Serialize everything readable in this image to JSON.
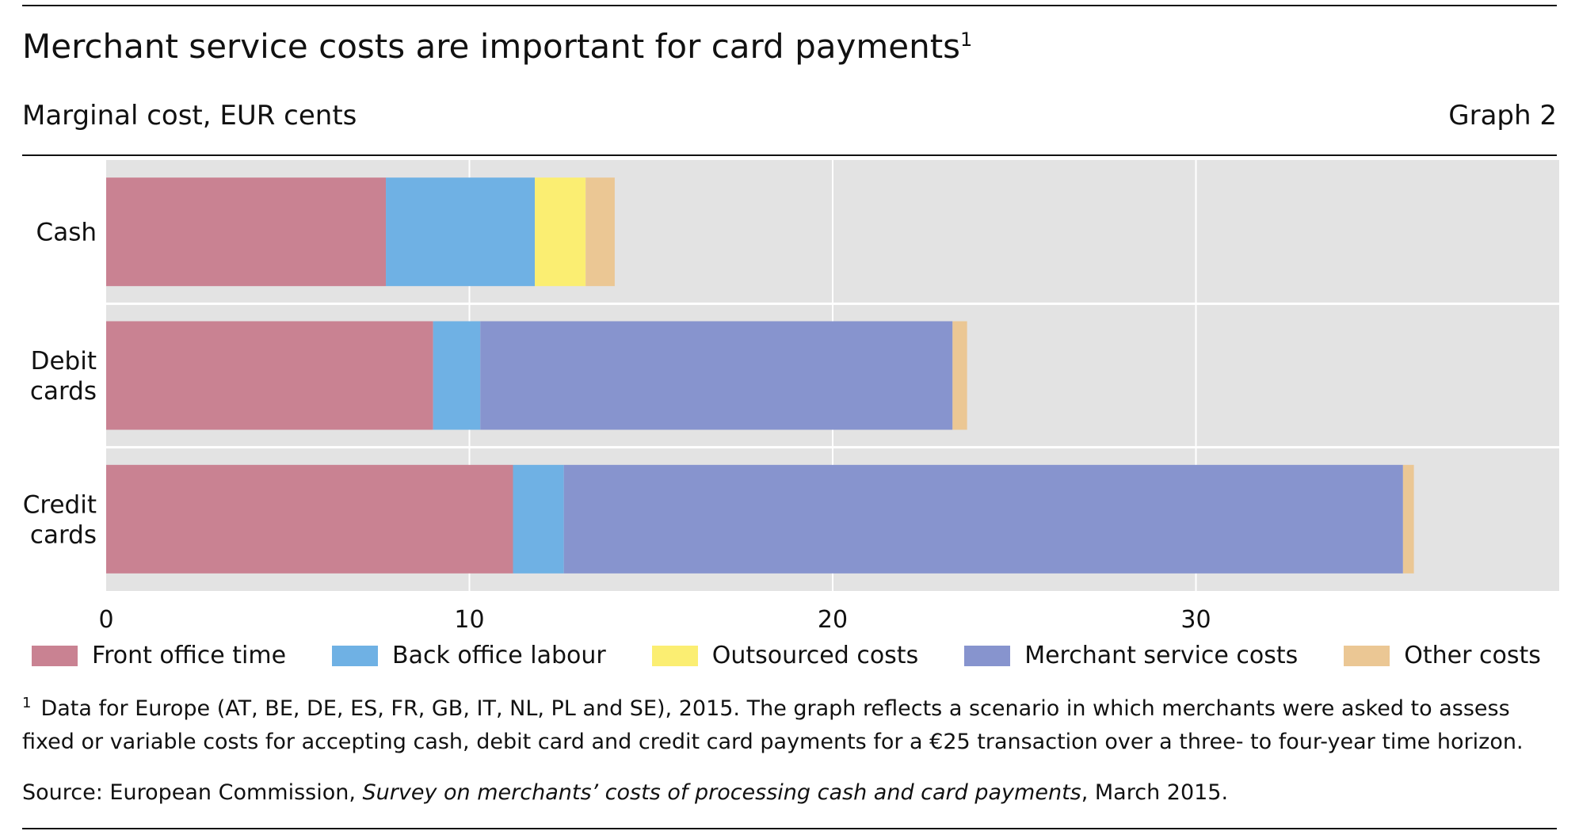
{
  "header": {
    "title": "Merchant service costs are important for card payments",
    "title_superscript": "1",
    "subtitle": "Marginal cost, EUR cents",
    "graph_number": "Graph 2"
  },
  "chart_data": {
    "type": "bar",
    "orientation": "horizontal",
    "stacked": true,
    "categories": [
      "Cash",
      "Debit cards",
      "Credit cards"
    ],
    "series": [
      {
        "name": "Front office time",
        "color": "#c98292",
        "values": [
          7.7,
          9.0,
          11.2
        ]
      },
      {
        "name": "Back office labour",
        "color": "#6fb1e4",
        "values": [
          4.1,
          1.3,
          1.4
        ]
      },
      {
        "name": "Outsourced costs",
        "color": "#fbee72",
        "values": [
          1.4,
          0,
          0
        ]
      },
      {
        "name": "Merchant service costs",
        "color": "#8794ce",
        "values": [
          0,
          13.0,
          23.1
        ]
      },
      {
        "name": "Other costs",
        "color": "#ebc794",
        "values": [
          0.8,
          0.4,
          0.3
        ]
      }
    ],
    "xlim": [
      0,
      40
    ],
    "x_ticks": [
      0,
      10,
      20,
      30
    ],
    "grid": true,
    "legend_position": "bottom",
    "background_color": "#e3e3e3",
    "grid_color": "#ffffff"
  },
  "footnote": {
    "marker": "1",
    "text": "Data for Europe (AT, BE, DE, ES, FR, GB, IT, NL, PL and SE), 2015. The graph reflects a scenario in which merchants were asked to assess fixed or variable costs for accepting cash, debit card and credit card payments for a €25 transaction over a three- to four-year time horizon."
  },
  "source": {
    "prefix": "Source: European Commission, ",
    "title": "Survey on merchants’ costs of processing cash and card payments",
    "suffix": ", March 2015."
  }
}
